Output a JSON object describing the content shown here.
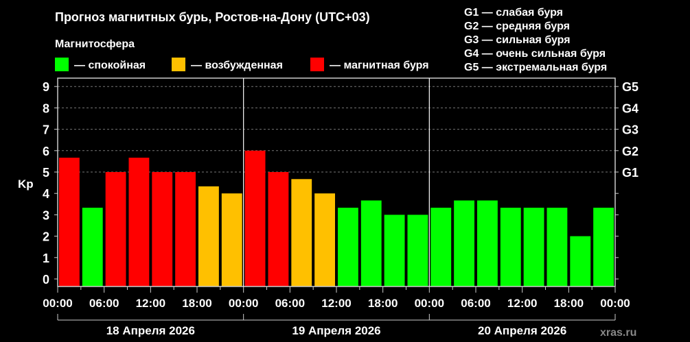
{
  "chart_data": {
    "type": "bar",
    "title": "Прогноз магнитных бурь, Ростов-на-Дону (UTC+03)",
    "legend_title": "Магнитосфера",
    "legend": [
      {
        "label": "— спокойная",
        "color": "#00ff00"
      },
      {
        "label": "— возбужденная",
        "color": "#ffc000"
      },
      {
        "label": "— магнитная буря",
        "color": "#ff0000"
      }
    ],
    "g_legend": [
      "G1 — слабая буря",
      "G2 — средняя буря",
      "G3 — сильная буря",
      "G4 — очень сильная буря",
      "G5 — экстремальная буря"
    ],
    "ylabel": "Kp",
    "ylim": [
      0,
      9
    ],
    "yticks": [
      "0",
      "1",
      "2",
      "3",
      "4",
      "5",
      "6",
      "7",
      "8",
      "9"
    ],
    "right_ticks": [
      {
        "value": 5,
        "label": "G1"
      },
      {
        "value": 6,
        "label": "G2"
      },
      {
        "value": 7,
        "label": "G3"
      },
      {
        "value": 8,
        "label": "G4"
      },
      {
        "value": 9,
        "label": "G5"
      }
    ],
    "xtick_labels": [
      "00:00",
      "06:00",
      "12:00",
      "18:00",
      "00:00",
      "06:00",
      "12:00",
      "18:00",
      "00:00",
      "06:00",
      "12:00",
      "18:00",
      "00:00"
    ],
    "days": [
      "18 Апреля 2026",
      "19 Апреля 2026",
      "20 Апреля 2026"
    ],
    "interval_hours": 3,
    "values": [
      5.67,
      3.33,
      5,
      5.67,
      5,
      5,
      4.33,
      4,
      6,
      5,
      4.67,
      4,
      3.33,
      3.67,
      3,
      3,
      3.33,
      3.67,
      3.67,
      3.33,
      3.33,
      3.33,
      2,
      3.33
    ],
    "levels": [
      "storm",
      "quiet",
      "storm",
      "storm",
      "storm",
      "storm",
      "active",
      "active",
      "storm",
      "storm",
      "active",
      "active",
      "quiet",
      "quiet",
      "quiet",
      "quiet",
      "quiet",
      "quiet",
      "quiet",
      "quiet",
      "quiet",
      "quiet",
      "quiet",
      "quiet"
    ],
    "level_colors": {
      "quiet": "#00ff00",
      "active": "#ffc000",
      "storm": "#ff0000"
    },
    "grid": true
  },
  "watermark": "xras.ru"
}
